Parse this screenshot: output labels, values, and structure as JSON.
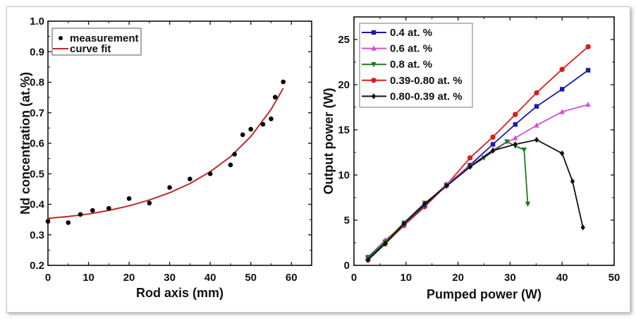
{
  "chart_data": [
    {
      "type": "scatter",
      "title": "",
      "xlabel": "Rod axis (mm)",
      "ylabel": "Nd concentration (at.%)",
      "xlim": [
        0,
        65
      ],
      "ylim": [
        0.2,
        1.0
      ],
      "xticks": [
        "0",
        "10",
        "20",
        "30",
        "40",
        "50",
        "60"
      ],
      "xtick_values": [
        0,
        10,
        20,
        30,
        40,
        50,
        60
      ],
      "yticks": [
        "0.2",
        "0.3",
        "0.4",
        "0.5",
        "0.6",
        "0.7",
        "0.8",
        "0.9",
        "1.0"
      ],
      "ytick_values": [
        0.2,
        0.3,
        0.4,
        0.5,
        0.6,
        0.7,
        0.8,
        0.9,
        1.0
      ],
      "grid": false,
      "legend_position": "top-left",
      "series": [
        {
          "name": "measurement",
          "kind": "scatter",
          "color": "#000000",
          "x": [
            0,
            5,
            8,
            11,
            15,
            20,
            25,
            30,
            35,
            40,
            45,
            46,
            48,
            50,
            53,
            55,
            56,
            58
          ],
          "y": [
            0.344,
            0.34,
            0.367,
            0.38,
            0.387,
            0.419,
            0.404,
            0.455,
            0.483,
            0.5,
            0.529,
            0.564,
            0.628,
            0.646,
            0.662,
            0.68,
            0.751,
            0.801
          ]
        },
        {
          "name": "curve fit",
          "kind": "line",
          "color": "#c0282a",
          "x": [
            0,
            5,
            10,
            15,
            20,
            25,
            30,
            35,
            40,
            45,
            50,
            55,
            58
          ],
          "y": [
            0.354,
            0.36,
            0.368,
            0.38,
            0.395,
            0.414,
            0.438,
            0.468,
            0.507,
            0.556,
            0.622,
            0.711,
            0.78
          ]
        }
      ]
    },
    {
      "type": "line",
      "title": "",
      "xlabel": "Pumped power (W)",
      "ylabel": "Output power (W)",
      "xlim": [
        0,
        50
      ],
      "ylim": [
        0,
        27.5
      ],
      "xticks": [
        "0",
        "10",
        "20",
        "30",
        "40",
        "50"
      ],
      "xtick_values": [
        0,
        10,
        20,
        30,
        40,
        50
      ],
      "yticks": [
        "0",
        "5",
        "10",
        "15",
        "20",
        "25"
      ],
      "ytick_values": [
        0,
        5,
        10,
        15,
        20,
        25
      ],
      "grid": false,
      "legend_position": "top-left",
      "series": [
        {
          "name": "0.4 at. %",
          "color": "#1a1aa8",
          "marker": "square",
          "x": [
            2.7,
            6.0,
            9.6,
            13.6,
            17.8,
            22.3,
            26.7,
            31.0,
            35.1,
            40.0,
            45.0
          ],
          "y": [
            0.8,
            2.6,
            4.5,
            6.7,
            8.9,
            11.1,
            13.4,
            15.6,
            17.6,
            19.5,
            21.6
          ]
        },
        {
          "name": "0.6 at. %",
          "color": "#d54fd8",
          "marker": "triangle-up",
          "x": [
            2.7,
            6.0,
            9.6,
            13.6,
            17.8,
            22.3,
            26.7,
            31.0,
            35.1,
            40.0,
            45.0
          ],
          "y": [
            0.9,
            2.8,
            4.5,
            6.8,
            9.0,
            11.0,
            12.8,
            14.1,
            15.5,
            17.0,
            17.8
          ]
        },
        {
          "name": "0.8 at. %",
          "color": "#1e7a1e",
          "marker": "triangle-down",
          "x": [
            2.7,
            6.0,
            9.6,
            13.6,
            17.8,
            22.3,
            25.0,
            29.4,
            31.0,
            32.7,
            33.4
          ],
          "y": [
            0.9,
            2.6,
            4.7,
            6.9,
            8.8,
            10.9,
            11.9,
            13.7,
            13.2,
            12.8,
            6.8
          ]
        },
        {
          "name": "0.39-0.80 at. %",
          "color": "#d42020",
          "marker": "circle",
          "x": [
            2.7,
            6.0,
            9.6,
            13.6,
            17.8,
            22.3,
            26.7,
            31.0,
            35.1,
            40.0,
            45.0
          ],
          "y": [
            0.6,
            2.4,
            4.4,
            6.5,
            8.9,
            11.9,
            14.2,
            16.7,
            19.1,
            21.7,
            24.2
          ]
        },
        {
          "name": "0.80-0.39 at. %",
          "color": "#111111",
          "marker": "diamond",
          "x": [
            2.7,
            6.0,
            9.6,
            13.6,
            17.8,
            22.3,
            26.7,
            31.0,
            35.1,
            40.0,
            42.0,
            44.0
          ],
          "y": [
            0.6,
            2.4,
            4.6,
            6.8,
            8.8,
            10.9,
            12.7,
            13.4,
            13.9,
            12.4,
            9.3,
            4.2
          ]
        }
      ]
    }
  ]
}
